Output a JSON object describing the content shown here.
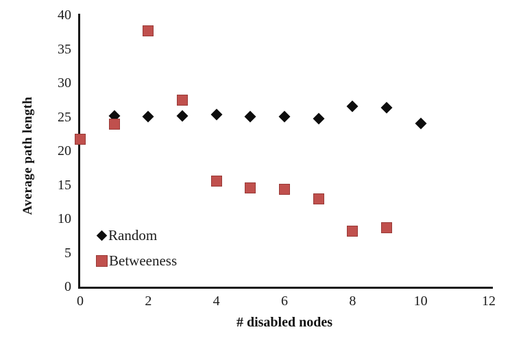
{
  "chart_data": {
    "type": "scatter",
    "title": "",
    "xlabel": "# disabled nodes",
    "ylabel": "Average path length",
    "xlim": [
      0,
      12
    ],
    "ylim": [
      0,
      40
    ],
    "x_ticks": [
      0,
      2,
      4,
      6,
      8,
      10,
      12
    ],
    "y_ticks": [
      0,
      5,
      10,
      15,
      20,
      25,
      30,
      35,
      40
    ],
    "grid": false,
    "legend_position": "inside-lower-left",
    "series": [
      {
        "name": "Random",
        "marker": "diamond",
        "color": "#0d0d0d",
        "x": [
          1,
          2,
          3,
          4,
          5,
          6,
          7,
          8,
          9,
          10
        ],
        "y": [
          25.2,
          25.1,
          25.2,
          25.4,
          25.1,
          25.1,
          24.7,
          26.6,
          26.4,
          24.0
        ]
      },
      {
        "name": "Betweeness",
        "marker": "square",
        "color": "#c0504d",
        "x": [
          0,
          1,
          2,
          3,
          4,
          5,
          6,
          7,
          8,
          9
        ],
        "y": [
          21.7,
          23.9,
          37.7,
          27.5,
          15.6,
          14.5,
          14.3,
          12.9,
          8.2,
          8.7
        ]
      }
    ]
  },
  "colors": {
    "axis": "#171717",
    "random_marker": "#0d0d0d",
    "betweeness_marker": "#c0504d"
  }
}
